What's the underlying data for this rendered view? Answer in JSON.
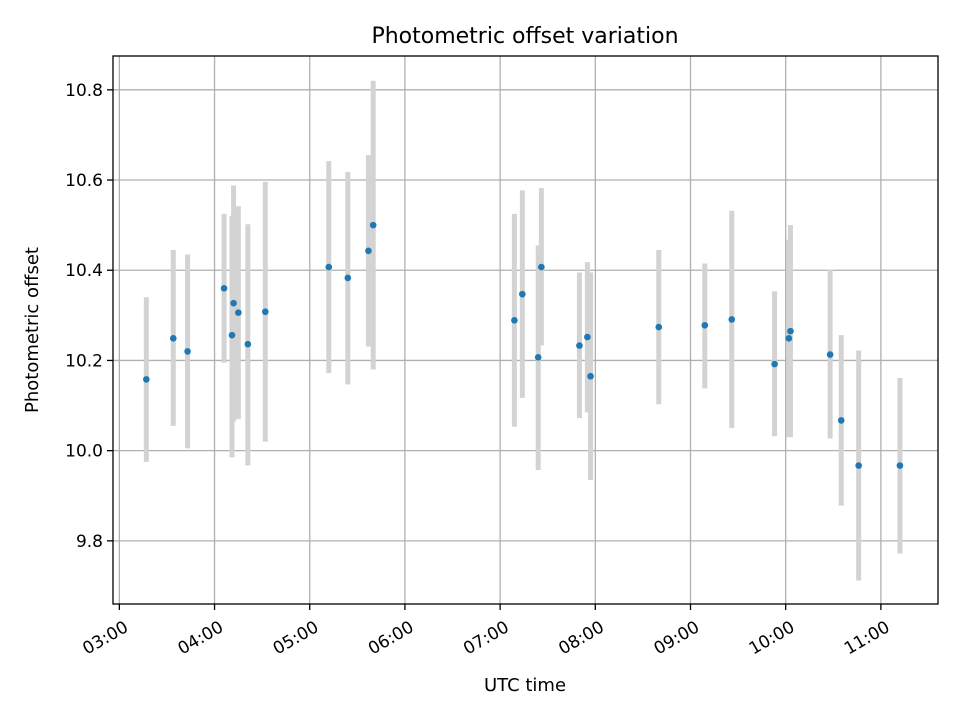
{
  "chart_data": {
    "type": "scatter",
    "title": "Photometric offset variation",
    "xlabel": "UTC time",
    "ylabel": "Photometric offset",
    "x_unit": "hours UTC",
    "xlim": [
      "02:56",
      "11:36"
    ],
    "ylim": [
      9.66,
      10.875
    ],
    "x_ticks": [
      "03:00",
      "04:00",
      "05:00",
      "06:00",
      "07:00",
      "08:00",
      "09:00",
      "10:00",
      "11:00"
    ],
    "y_ticks": [
      "9.8",
      "10.0",
      "10.2",
      "10.4",
      "10.6",
      "10.8"
    ],
    "grid": true,
    "legend": "none",
    "colors": {
      "point": "#1f77b4",
      "error_bar": "#d3d3d3"
    },
    "points": [
      {
        "x": "03:17",
        "y": 10.158,
        "ylow": 9.975,
        "yhigh": 10.34
      },
      {
        "x": "03:34",
        "y": 10.249,
        "ylow": 10.055,
        "yhigh": 10.445
      },
      {
        "x": "03:43",
        "y": 10.22,
        "ylow": 10.005,
        "yhigh": 10.435
      },
      {
        "x": "04:06",
        "y": 10.36,
        "ylow": 10.195,
        "yhigh": 10.525
      },
      {
        "x": "04:11",
        "y": 10.256,
        "ylow": 9.985,
        "yhigh": 10.52
      },
      {
        "x": "04:12",
        "y": 10.327,
        "ylow": 10.065,
        "yhigh": 10.588
      },
      {
        "x": "04:15",
        "y": 10.306,
        "ylow": 10.07,
        "yhigh": 10.542
      },
      {
        "x": "04:21",
        "y": 10.236,
        "ylow": 9.967,
        "yhigh": 10.502
      },
      {
        "x": "04:32",
        "y": 10.308,
        "ylow": 10.02,
        "yhigh": 10.596
      },
      {
        "x": "05:12",
        "y": 10.407,
        "ylow": 10.172,
        "yhigh": 10.642
      },
      {
        "x": "05:24",
        "y": 10.383,
        "ylow": 10.147,
        "yhigh": 10.618
      },
      {
        "x": "05:37",
        "y": 10.443,
        "ylow": 10.231,
        "yhigh": 10.655
      },
      {
        "x": "05:40",
        "y": 10.5,
        "ylow": 10.18,
        "yhigh": 10.82
      },
      {
        "x": "07:09",
        "y": 10.289,
        "ylow": 10.053,
        "yhigh": 10.525
      },
      {
        "x": "07:14",
        "y": 10.347,
        "ylow": 10.117,
        "yhigh": 10.577
      },
      {
        "x": "07:24",
        "y": 10.207,
        "ylow": 9.957,
        "yhigh": 10.455
      },
      {
        "x": "07:26",
        "y": 10.407,
        "ylow": 10.233,
        "yhigh": 10.582
      },
      {
        "x": "07:50",
        "y": 10.233,
        "ylow": 10.072,
        "yhigh": 10.395
      },
      {
        "x": "07:55",
        "y": 10.252,
        "ylow": 10.085,
        "yhigh": 10.418
      },
      {
        "x": "07:57",
        "y": 10.165,
        "ylow": 9.935,
        "yhigh": 10.395
      },
      {
        "x": "08:40",
        "y": 10.274,
        "ylow": 10.103,
        "yhigh": 10.445
      },
      {
        "x": "09:09",
        "y": 10.278,
        "ylow": 10.138,
        "yhigh": 10.415
      },
      {
        "x": "09:26",
        "y": 10.291,
        "ylow": 10.05,
        "yhigh": 10.532
      },
      {
        "x": "09:53",
        "y": 10.192,
        "ylow": 10.032,
        "yhigh": 10.353
      },
      {
        "x": "10:02",
        "y": 10.249,
        "ylow": 10.03,
        "yhigh": 10.468
      },
      {
        "x": "10:03",
        "y": 10.265,
        "ylow": 10.03,
        "yhigh": 10.5
      },
      {
        "x": "10:28",
        "y": 10.213,
        "ylow": 10.027,
        "yhigh": 10.401
      },
      {
        "x": "10:35",
        "y": 10.067,
        "ylow": 9.878,
        "yhigh": 10.256
      },
      {
        "x": "10:46",
        "y": 9.967,
        "ylow": 9.712,
        "yhigh": 10.222
      },
      {
        "x": "11:12",
        "y": 9.967,
        "ylow": 9.772,
        "yhigh": 10.161
      }
    ]
  }
}
